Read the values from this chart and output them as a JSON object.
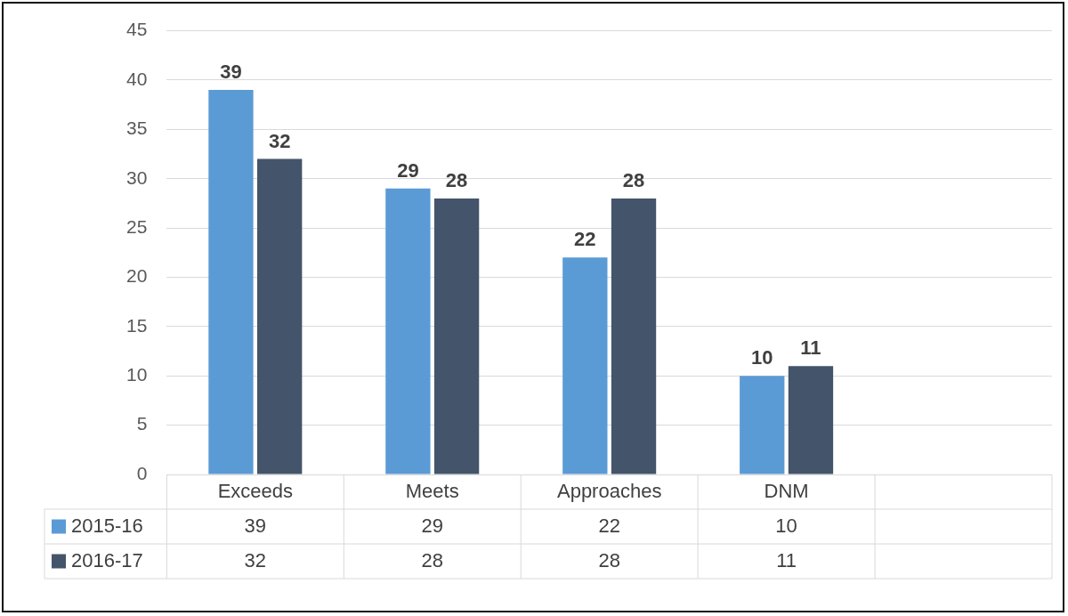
{
  "chart_data": {
    "type": "bar",
    "categories": [
      "Exceeds",
      "Meets",
      "Approaches",
      "DNM",
      null
    ],
    "series": [
      {
        "name": "2015-16",
        "color": "#5b9bd5",
        "values": [
          39,
          29,
          22,
          10,
          null
        ],
        "value_labels": [
          "39",
          "29",
          "22",
          "10",
          null
        ]
      },
      {
        "name": "2016-17",
        "color": "#44546a",
        "values": [
          32,
          28,
          28,
          11,
          null
        ],
        "value_labels": [
          "32",
          "28",
          "28",
          "11",
          null
        ]
      }
    ],
    "ylim": [
      0,
      45
    ],
    "yticks": [
      0,
      5,
      10,
      15,
      20,
      25,
      30,
      35,
      40,
      45
    ],
    "annotations": [
      "39",
      "29",
      "22",
      "10",
      "32",
      "28",
      "28",
      "11"
    ],
    "grid": "y",
    "legend": "bottom"
  }
}
